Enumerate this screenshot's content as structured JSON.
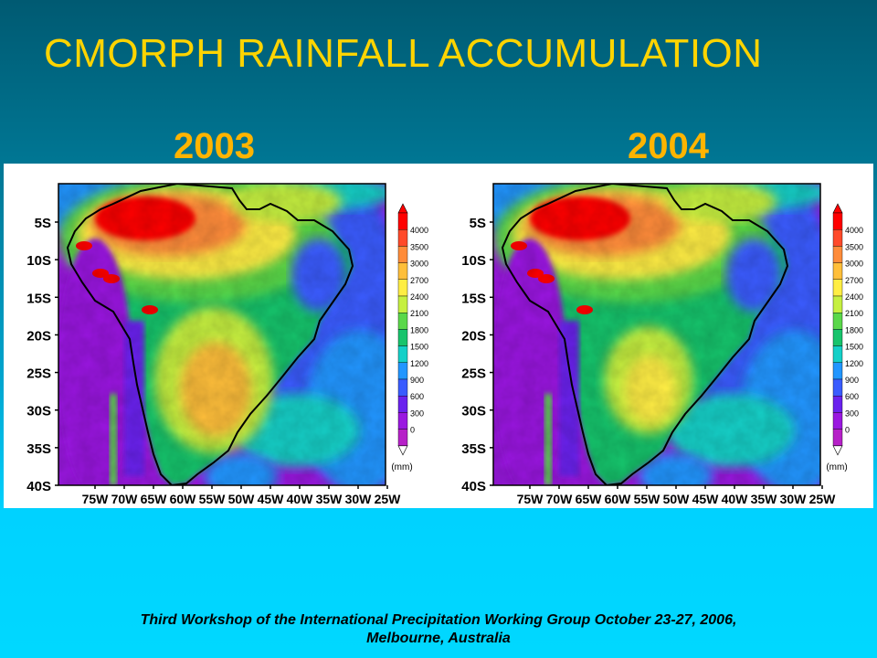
{
  "title": "CMORPH RAINFALL ACCUMULATION",
  "panels": [
    {
      "year": "2003"
    },
    {
      "year": "2004"
    }
  ],
  "lat_labels": [
    "5S",
    "10S",
    "15S",
    "20S",
    "25S",
    "30S",
    "35S",
    "40S"
  ],
  "lon_labels": [
    "75W",
    "70W",
    "65W",
    "60W",
    "55W",
    "50W",
    "45W",
    "40W",
    "35W",
    "30W",
    "25W"
  ],
  "colorbar": {
    "levels": [
      "4000",
      "3500",
      "3000",
      "2700",
      "2400",
      "2100",
      "1800",
      "1500",
      "1200",
      "900",
      "600",
      "300",
      "0"
    ],
    "colors": [
      "#ff0000",
      "#ff4a2a",
      "#ff8c3a",
      "#ffbf3a",
      "#ffee44",
      "#c6f040",
      "#5ad84a",
      "#18c46c",
      "#14d0c8",
      "#2296ff",
      "#3a5cff",
      "#6a22ee",
      "#9a18e0",
      "#b620c8"
    ],
    "unit": "(mm)"
  },
  "footer": {
    "line1": "Third Workshop of the International Precipitation Working Group October 23-27, 2006,",
    "line2": "Melbourne, Australia"
  }
}
